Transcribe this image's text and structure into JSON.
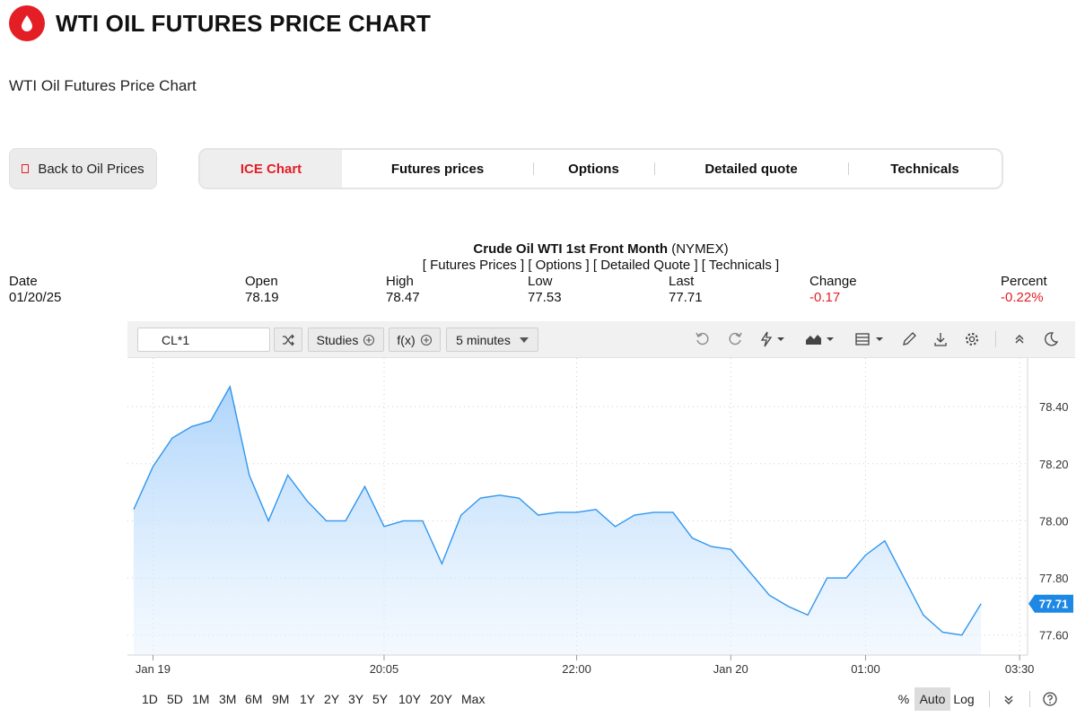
{
  "header": {
    "title": "WTI OIL FUTURES PRICE CHART",
    "subtitle": "WTI Oil Futures Price Chart"
  },
  "nav": {
    "back_label": "Back to Oil Prices",
    "tabs": [
      {
        "label": "ICE Chart",
        "active": true
      },
      {
        "label": "Futures prices"
      },
      {
        "label": "Options"
      },
      {
        "label": "Detailed quote"
      },
      {
        "label": "Technicals"
      }
    ]
  },
  "instrument": {
    "name": "Crude Oil WTI 1st Front Month",
    "exchange": "(NYMEX)",
    "links": [
      "[ Futures Prices ]",
      "[ Options ]",
      "[ Detailed Quote ]",
      "[ Technicals ]"
    ]
  },
  "quote": {
    "date_label": "Date",
    "date": "01/20/25",
    "open_label": "Open",
    "open": "78.19",
    "high_label": "High",
    "high": "78.47",
    "low_label": "Low",
    "low": "77.53",
    "last_label": "Last",
    "last": "77.71",
    "change_label": "Change",
    "change": "-0.17",
    "percent_label": "Percent",
    "percent": "-0.22%"
  },
  "toolbar": {
    "symbol": "CL*1",
    "studies_label": "Studies",
    "fx_label": "f(x)",
    "interval_label": "5 minutes"
  },
  "ranges": [
    "1D",
    "5D",
    "1M",
    "3M",
    "6M",
    "9M",
    "1Y",
    "2Y",
    "3Y",
    "5Y",
    "10Y",
    "20Y",
    "Max"
  ],
  "scales": {
    "percent": "%",
    "auto": "Auto",
    "log": "Log"
  },
  "colors": {
    "accent": "#e31e25",
    "line": "#2f96ef",
    "last_badge": "#1e88e5",
    "negative": "#e31e25"
  },
  "chart_data": {
    "type": "area",
    "y_ticks": [
      "78.40",
      "78.20",
      "78.00",
      "77.80",
      "77.60"
    ],
    "y_tick_values": [
      78.4,
      78.2,
      78.0,
      77.8,
      77.6
    ],
    "ylim": [
      77.53,
      78.57
    ],
    "x_ticks": [
      {
        "label": "Jan 19",
        "index": 1
      },
      {
        "label": "20:05",
        "index": 13
      },
      {
        "label": "22:00",
        "index": 23
      },
      {
        "label": "Jan 20",
        "index": 31
      },
      {
        "label": "01:00",
        "index": 38
      },
      {
        "label": "03:30",
        "index": 46
      }
    ],
    "values": [
      78.04,
      78.19,
      78.29,
      78.33,
      78.35,
      78.47,
      78.16,
      78.0,
      78.16,
      78.07,
      78.0,
      78.0,
      78.12,
      77.98,
      78.0,
      78.0,
      77.85,
      78.02,
      78.08,
      78.09,
      78.08,
      78.02,
      78.03,
      78.03,
      78.04,
      77.98,
      78.02,
      78.03,
      78.03,
      77.94,
      77.91,
      77.9,
      77.82,
      77.74,
      77.7,
      77.67,
      77.8,
      77.8,
      77.88,
      77.93,
      77.8,
      77.67,
      77.61,
      77.6,
      77.71
    ],
    "last_value": "77.71"
  }
}
